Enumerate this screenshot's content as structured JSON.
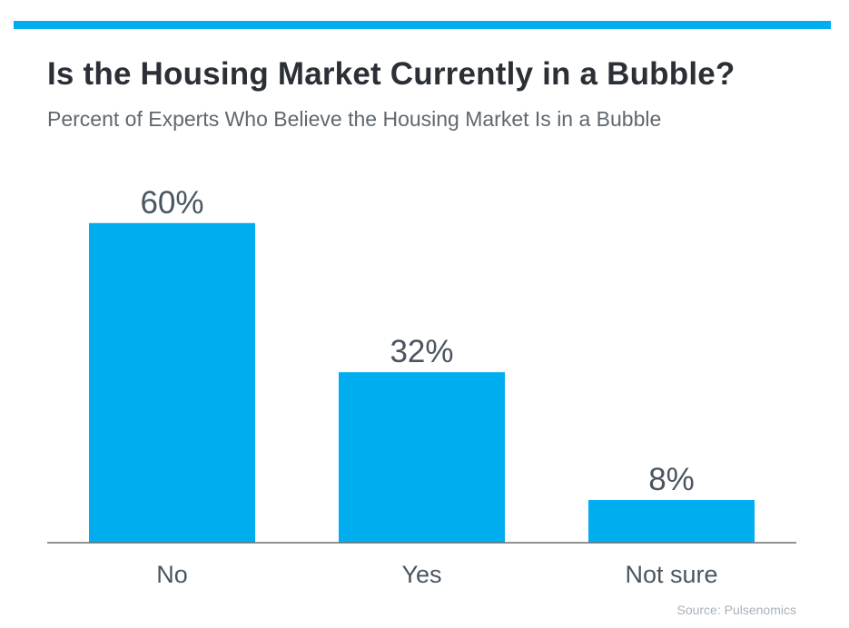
{
  "header": {
    "title": "Is the Housing Market Currently in a Bubble?",
    "subtitle": "Percent of Experts Who Believe the Housing Market Is in a Bubble"
  },
  "footer": {
    "source": "Source: Pulsenomics"
  },
  "colors": {
    "accent": "#00aeef",
    "bar": "#00aeef",
    "title": "#2b2f36",
    "subtitle": "#5f6870",
    "labels": "#4a5560",
    "baseline": "#6d6d6d",
    "source": "#a9b1b8"
  },
  "chart_data": {
    "type": "bar",
    "title": "Is the Housing Market Currently in a Bubble?",
    "subtitle": "Percent of Experts Who Believe the Housing Market Is in a Bubble",
    "categories": [
      "No",
      "Yes",
      "Not sure"
    ],
    "values": [
      60,
      32,
      8
    ],
    "data_labels": [
      "60%",
      "32%",
      "8%"
    ],
    "ylim": [
      0,
      70
    ],
    "grid": false,
    "legend": "none"
  }
}
